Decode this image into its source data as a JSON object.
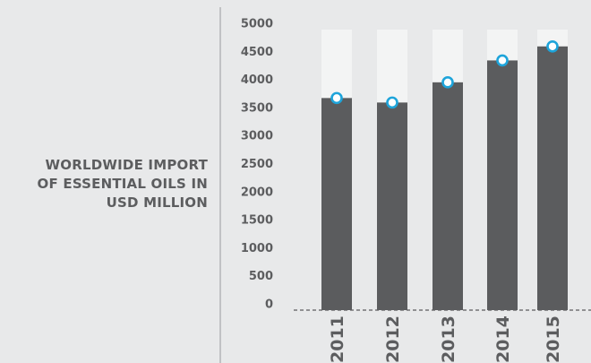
{
  "chart_data": {
    "type": "bar",
    "title_lines": [
      "WORLDWIDE IMPORT",
      "OF ESSENTIAL OILS IN",
      "USD MILLION"
    ],
    "categories": [
      "2011",
      "2012",
      "2013",
      "2014",
      "2015"
    ],
    "values": [
      3780,
      3700,
      4060,
      4450,
      4700
    ],
    "ylim": [
      0,
      5000
    ],
    "yticks": [
      "5000",
      "4500",
      "4000",
      "3500",
      "3000",
      "2500",
      "2000",
      "1500",
      "1000",
      "500",
      "0"
    ],
    "xlabel": "",
    "ylabel": "",
    "grid": false,
    "background_bars": true,
    "markers": "circle",
    "colors": {
      "background": "#e8e9ea",
      "bar": "#5b5c5e",
      "bar_background": "#f3f4f4",
      "marker": "#1ea4da",
      "text": "#5c5d5f",
      "axis": "#9a9b9d"
    }
  }
}
